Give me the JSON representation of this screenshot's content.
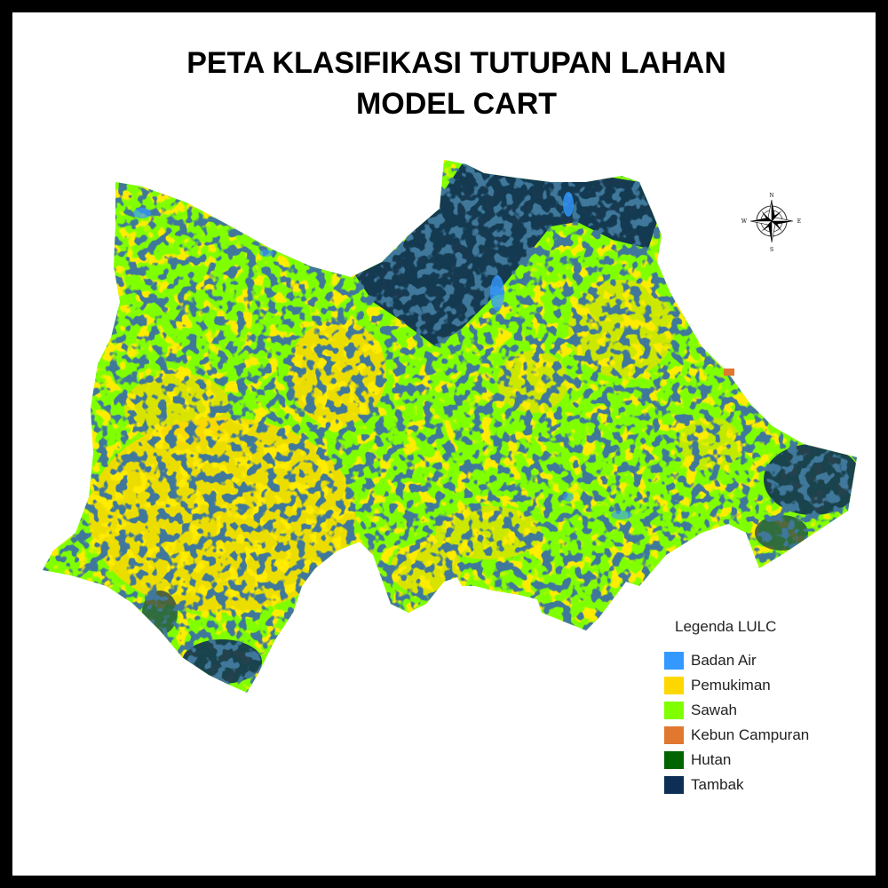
{
  "title": {
    "line1": "PETA KLASIFIKASI TUTUPAN LAHAN",
    "line2": "MODEL CART"
  },
  "compass": {
    "n": "N",
    "s": "S",
    "e": "E",
    "w": "W"
  },
  "legend": {
    "title": "Legenda LULC",
    "items": [
      {
        "label": "Badan Air",
        "color": "#3399ff"
      },
      {
        "label": "Pemukiman",
        "color": "#ffd700"
      },
      {
        "label": "Sawah",
        "color": "#80ff00"
      },
      {
        "label": "Kebun Campuran",
        "color": "#e07830"
      },
      {
        "label": "Hutan",
        "color": "#006400"
      },
      {
        "label": "Tambak",
        "color": "#0d2f55"
      }
    ]
  }
}
